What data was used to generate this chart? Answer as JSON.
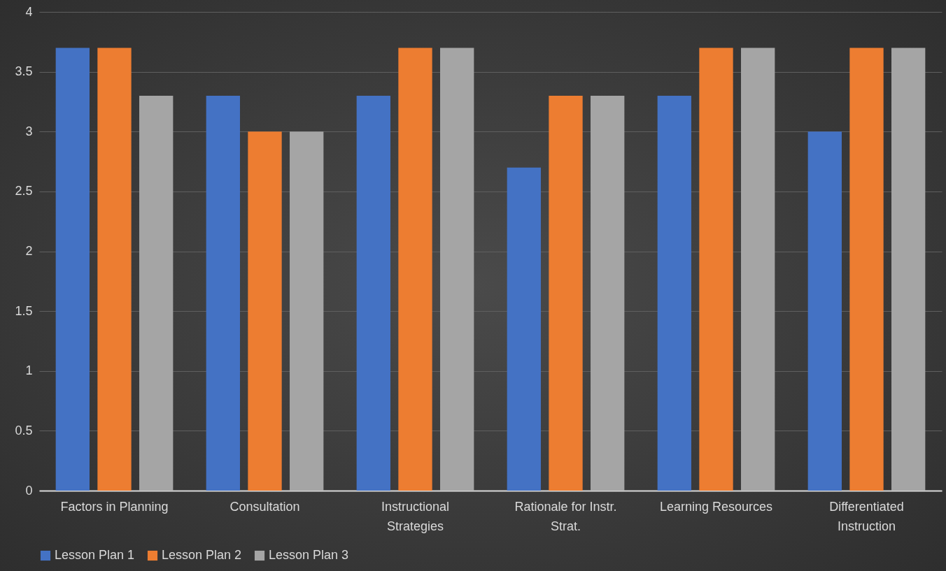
{
  "chart_data": {
    "type": "bar",
    "categories": [
      "Factors in Planning",
      "Consultation",
      "Instructional Strategies",
      "Rationale for Instr. Strat.",
      "Learning Resources",
      "Differentiated Instruction"
    ],
    "series": [
      {
        "name": "Lesson Plan 1",
        "color": "#4472c4",
        "values": [
          3.7,
          3.3,
          3.3,
          2.7,
          3.3,
          3.0
        ]
      },
      {
        "name": "Lesson Plan 2",
        "color": "#ed7d31",
        "values": [
          3.7,
          3.0,
          3.7,
          3.3,
          3.7,
          3.7
        ]
      },
      {
        "name": "Lesson Plan 3",
        "color": "#a5a5a5",
        "values": [
          3.3,
          3.0,
          3.7,
          3.3,
          3.7,
          3.7
        ]
      }
    ],
    "ylim": [
      0,
      4
    ],
    "yticks": [
      0,
      0.5,
      1,
      1.5,
      2,
      2.5,
      3,
      3.5,
      4
    ],
    "grid": "y",
    "legend": "bottom"
  }
}
